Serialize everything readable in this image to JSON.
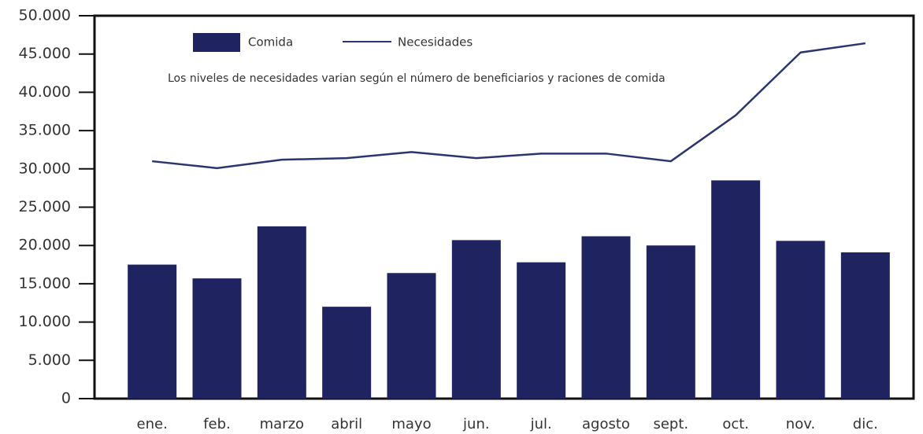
{
  "chart_data": {
    "type": "bar",
    "annotation": "Los niveles de necesidades varian según el número de beneficiarios y raciones de comida",
    "categories": [
      "ene.",
      "feb.",
      "marzo",
      "abril",
      "mayo",
      "jun.",
      "jul.",
      "agosto",
      "sept.",
      "oct.",
      "nov.",
      "dic."
    ],
    "series": [
      {
        "name": "Comida",
        "type": "bar",
        "color": "#1f2461",
        "values": [
          17500,
          15700,
          22500,
          12000,
          16400,
          20700,
          17800,
          21200,
          20000,
          28500,
          20600,
          19100
        ]
      },
      {
        "name": "Necesidades",
        "type": "line",
        "color": "#2b3570",
        "values": [
          31000,
          30100,
          31200,
          31400,
          32200,
          31400,
          32000,
          32000,
          31000,
          37000,
          45200,
          46400
        ]
      }
    ],
    "ylim": [
      0,
      50000
    ],
    "yticks": [
      0,
      {
        "value": 5000,
        "label": "5.000"
      },
      {
        "value": 10000,
        "label": "10.000"
      },
      {
        "value": 15000,
        "label": "15.000"
      },
      {
        "value": 20000,
        "label": "20.000"
      },
      {
        "value": 25000,
        "label": "25.000"
      },
      {
        "value": 30000,
        "label": "30.000"
      },
      {
        "value": 35000,
        "label": "35.000"
      },
      {
        "value": 40000,
        "label": "40.000"
      },
      {
        "value": 45000,
        "label": "45.000"
      },
      {
        "value": 50000,
        "label": "50.000"
      }
    ]
  }
}
